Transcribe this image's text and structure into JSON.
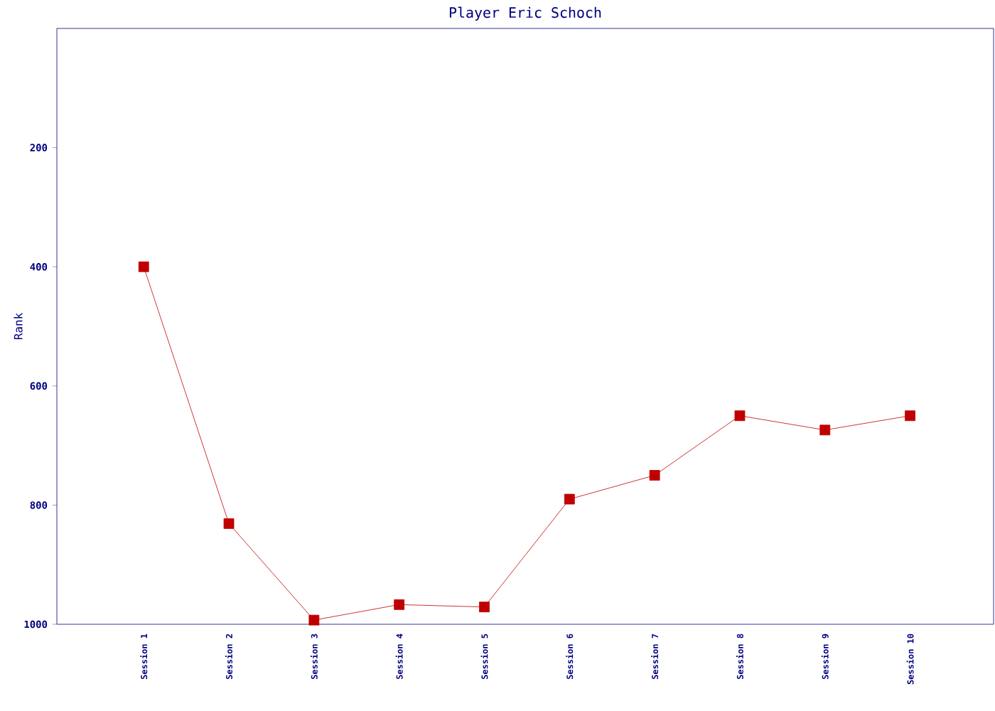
{
  "chart_data": {
    "type": "line",
    "title": "Player Eric Schoch",
    "ylabel": "Rank",
    "categories": [
      "Session 1",
      "Session 2",
      "Session 3",
      "Session 4",
      "Session 5",
      "Session 6",
      "Session 7",
      "Session 8",
      "Session 9",
      "Session 10"
    ],
    "values": [
      400,
      831,
      993,
      967,
      971,
      790,
      750,
      650,
      674,
      650
    ],
    "color": "#c00000",
    "marker": "square",
    "line_style": "solid",
    "ylim": [
      1000,
      0
    ],
    "yticks": [
      200,
      400,
      600,
      800,
      1000
    ]
  }
}
